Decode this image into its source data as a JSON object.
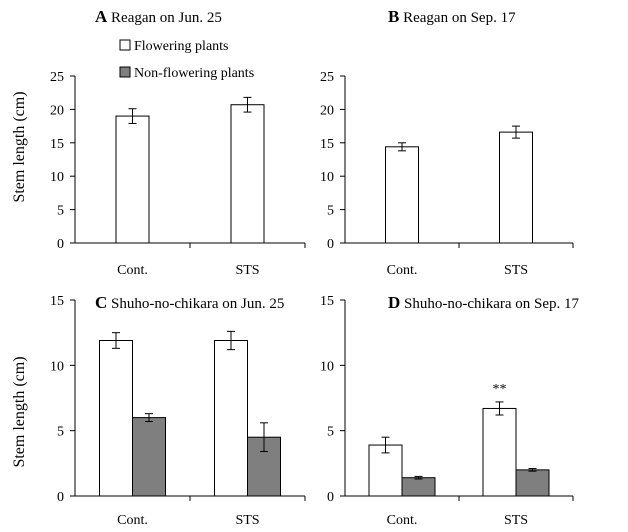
{
  "ylabel": "Stem length (cm)",
  "legend": [
    {
      "name": "Flowering plants",
      "color": "#ffffff"
    },
    {
      "name": "Non-flowering plants",
      "color": "#7f7f7f"
    }
  ],
  "chart_data": [
    {
      "type": "bar",
      "panel_letter": "A",
      "title": "Reagan on Jun. 25",
      "categories": [
        "Cont.",
        "STS"
      ],
      "ylim": [
        0,
        25
      ],
      "yticks": [
        0,
        5,
        10,
        15,
        20,
        25
      ],
      "series": [
        {
          "name": "Flowering plants",
          "values": [
            19.0,
            20.7
          ],
          "errors": [
            1.1,
            1.1
          ]
        }
      ],
      "annotations": []
    },
    {
      "type": "bar",
      "panel_letter": "B",
      "title": "Reagan on Sep. 17",
      "categories": [
        "Cont.",
        "STS"
      ],
      "ylim": [
        0,
        25
      ],
      "yticks": [
        0,
        5,
        10,
        15,
        20,
        25
      ],
      "series": [
        {
          "name": "Flowering plants",
          "values": [
            14.4,
            16.6
          ],
          "errors": [
            0.6,
            0.9
          ]
        }
      ],
      "annotations": []
    },
    {
      "type": "bar",
      "panel_letter": "C",
      "title": "Shuho-no-chikara on Jun. 25",
      "categories": [
        "Cont.",
        "STS"
      ],
      "ylim": [
        0,
        15
      ],
      "yticks": [
        0,
        5,
        10,
        15
      ],
      "series": [
        {
          "name": "Flowering plants",
          "values": [
            11.9,
            11.9
          ],
          "errors": [
            0.6,
            0.7
          ]
        },
        {
          "name": "Non-flowering plants",
          "values": [
            6.0,
            4.5
          ],
          "errors": [
            0.3,
            1.1
          ]
        }
      ],
      "annotations": []
    },
    {
      "type": "bar",
      "panel_letter": "D",
      "title": "Shuho-no-chikara on Sep. 17",
      "categories": [
        "Cont.",
        "STS"
      ],
      "ylim": [
        0,
        15
      ],
      "yticks": [
        0,
        5,
        10,
        15
      ],
      "series": [
        {
          "name": "Flowering plants",
          "values": [
            3.9,
            6.7
          ],
          "errors": [
            0.6,
            0.5
          ]
        },
        {
          "name": "Non-flowering plants",
          "values": [
            1.4,
            2.0
          ],
          "errors": [
            0.1,
            0.1
          ]
        }
      ],
      "annotations": [
        {
          "category_index": 1,
          "series_index": 0,
          "text": "**"
        }
      ]
    }
  ]
}
